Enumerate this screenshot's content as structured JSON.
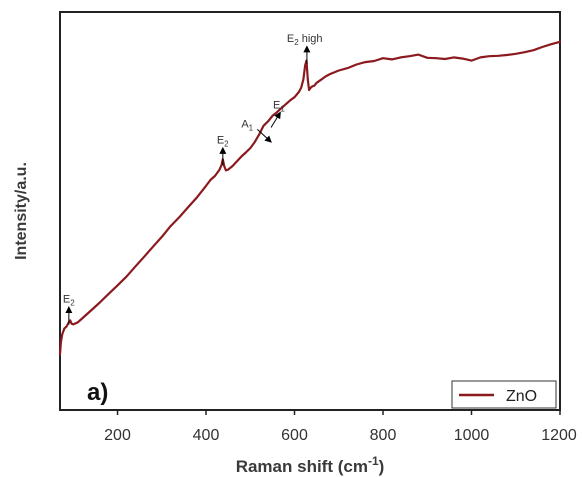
{
  "chart_data": {
    "type": "line",
    "xlabel": "Raman shift (cm",
    "xlabel_superscript": "-1",
    "xlabel_suffix": ")",
    "ylabel": "Intensity/a.u.",
    "xlim": [
      70,
      1200
    ],
    "ylim": [
      0,
      100
    ],
    "xticks": [
      200,
      400,
      600,
      800,
      1000,
      1200
    ],
    "y_tick_labels": false,
    "grid": false,
    "panel_label": "a)",
    "legend_position": "bottom-right",
    "colors": {
      "series": "#8b1a1f",
      "axis": "#222222",
      "arrow": "#000000"
    },
    "series": [
      {
        "name": "ZnO",
        "x": [
          70,
          72,
          75,
          80,
          85,
          90,
          93,
          96,
          100,
          110,
          120,
          140,
          160,
          180,
          200,
          220,
          240,
          260,
          280,
          300,
          320,
          340,
          360,
          380,
          400,
          410,
          420,
          430,
          435,
          438,
          441,
          445,
          450,
          460,
          470,
          480,
          490,
          500,
          510,
          520,
          530,
          540,
          550,
          560,
          570,
          580,
          590,
          600,
          610,
          615,
          620,
          624,
          627,
          630,
          633,
          636,
          640,
          645,
          650,
          660,
          670,
          680,
          700,
          720,
          740,
          760,
          780,
          800,
          820,
          840,
          860,
          880,
          900,
          920,
          940,
          960,
          980,
          1000,
          1020,
          1040,
          1060,
          1080,
          1100,
          1120,
          1140,
          1160,
          1180,
          1200
        ],
        "values": [
          14,
          17,
          19,
          20.5,
          21,
          22,
          22.5,
          21.7,
          21.5,
          22,
          23,
          25,
          27,
          29.2,
          31.3,
          33.5,
          36,
          38.5,
          41,
          43.5,
          46.2,
          48.5,
          51,
          53.5,
          56.3,
          57.8,
          58.8,
          60.3,
          61.5,
          63,
          61.3,
          60.2,
          60.4,
          61.3,
          62.5,
          63.7,
          64.7,
          65.8,
          67.3,
          69.2,
          71.4,
          72.5,
          73.9,
          74.8,
          75.8,
          76.8,
          77.8,
          78.6,
          79.9,
          81,
          83.1,
          86.5,
          87.8,
          83,
          80.4,
          80.9,
          81.3,
          81.5,
          82.2,
          83,
          83.8,
          84.4,
          85.3,
          85.9,
          86.8,
          87.4,
          87.7,
          88.4,
          88.1,
          88.6,
          88.9,
          89.3,
          88.5,
          88.4,
          88.2,
          88.6,
          88.3,
          87.8,
          88.6,
          88.9,
          89,
          89.2,
          89.5,
          89.9,
          90.4,
          91.2,
          91.9,
          92.5
        ]
      }
    ],
    "annotations": [
      {
        "label": "E",
        "sub": "2",
        "suffix": "",
        "x": 90,
        "y": 27.5
      },
      {
        "label": "E",
        "sub": "2",
        "suffix": "",
        "x": 438,
        "y": 67.5
      },
      {
        "label": "A",
        "sub": "1",
        "suffix": "",
        "x": 525,
        "y": 71.5
      },
      {
        "label": "E",
        "sub": "1",
        "suffix": "",
        "x": 565,
        "y": 75
      },
      {
        "label": "E",
        "sub": "2",
        "suffix": " high",
        "x": 628,
        "y": 93
      }
    ]
  }
}
